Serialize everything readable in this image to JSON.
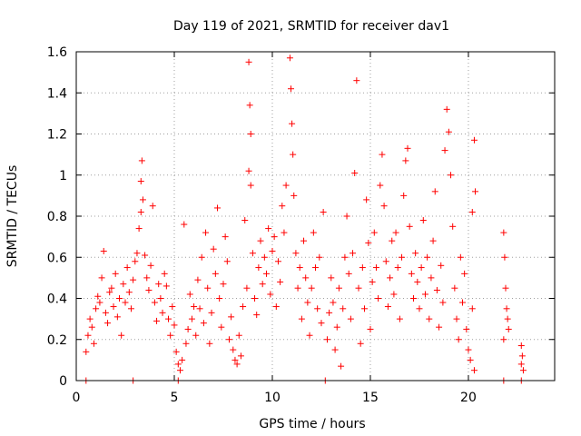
{
  "chart_data": {
    "type": "scatter",
    "title": "Day 119 of 2021, SRMTID for receiver dav1",
    "xlabel": "GPS time / hours",
    "ylabel": "SRMTID / TECUs",
    "xlim": [
      0,
      24.4
    ],
    "ylim": [
      0,
      1.6
    ],
    "xticks": [
      0,
      5,
      10,
      15,
      20
    ],
    "yticks": [
      0,
      0.2,
      0.4,
      0.6,
      0.8,
      1,
      1.2,
      1.4,
      1.6
    ],
    "xtick_labels": [
      "0",
      "5",
      "10",
      "15",
      "20"
    ],
    "ytick_labels": [
      "0",
      "0.2",
      "0.4",
      "0.6",
      "0.8",
      "1",
      "1.2",
      "1.4",
      "1.6"
    ],
    "grid": true,
    "marker": "+",
    "color": "#ff0000",
    "series": [
      {
        "name": "SRMTID",
        "points": [
          [
            0.5,
            0
          ],
          [
            2.9,
            0
          ],
          [
            5.2,
            0
          ],
          [
            12.7,
            0
          ],
          [
            21.8,
            0
          ],
          [
            22.7,
            0
          ],
          [
            0.5,
            0.14
          ],
          [
            0.6,
            0.22
          ],
          [
            0.7,
            0.3
          ],
          [
            0.8,
            0.26
          ],
          [
            0.9,
            0.18
          ],
          [
            1.0,
            0.35
          ],
          [
            1.1,
            0.41
          ],
          [
            1.2,
            0.38
          ],
          [
            1.3,
            0.5
          ],
          [
            1.4,
            0.63
          ],
          [
            1.5,
            0.33
          ],
          [
            1.6,
            0.28
          ],
          [
            1.7,
            0.43
          ],
          [
            1.8,
            0.45
          ],
          [
            1.9,
            0.36
          ],
          [
            2.0,
            0.52
          ],
          [
            2.1,
            0.31
          ],
          [
            2.2,
            0.4
          ],
          [
            2.3,
            0.22
          ],
          [
            2.4,
            0.47
          ],
          [
            2.5,
            0.38
          ],
          [
            2.6,
            0.55
          ],
          [
            2.7,
            0.43
          ],
          [
            2.8,
            0.35
          ],
          [
            2.9,
            0.49
          ],
          [
            3.0,
            0.58
          ],
          [
            3.1,
            0.62
          ],
          [
            3.2,
            0.74
          ],
          [
            3.3,
            0.82
          ],
          [
            3.35,
            1.07
          ],
          [
            3.3,
            0.97
          ],
          [
            3.4,
            0.88
          ],
          [
            3.5,
            0.61
          ],
          [
            3.6,
            0.5
          ],
          [
            3.7,
            0.44
          ],
          [
            3.8,
            0.56
          ],
          [
            3.9,
            0.85
          ],
          [
            4.0,
            0.38
          ],
          [
            4.1,
            0.29
          ],
          [
            4.2,
            0.47
          ],
          [
            4.3,
            0.4
          ],
          [
            4.4,
            0.33
          ],
          [
            4.5,
            0.52
          ],
          [
            4.6,
            0.46
          ],
          [
            4.7,
            0.3
          ],
          [
            4.8,
            0.22
          ],
          [
            4.9,
            0.36
          ],
          [
            5.0,
            0.27
          ],
          [
            5.1,
            0.14
          ],
          [
            5.2,
            0.08
          ],
          [
            5.3,
            0.05
          ],
          [
            5.4,
            0.1
          ],
          [
            5.5,
            0.76
          ],
          [
            5.6,
            0.18
          ],
          [
            5.7,
            0.25
          ],
          [
            5.8,
            0.42
          ],
          [
            5.9,
            0.3
          ],
          [
            6.0,
            0.36
          ],
          [
            6.1,
            0.22
          ],
          [
            6.2,
            0.49
          ],
          [
            6.3,
            0.35
          ],
          [
            6.4,
            0.6
          ],
          [
            6.5,
            0.28
          ],
          [
            6.6,
            0.72
          ],
          [
            6.7,
            0.45
          ],
          [
            6.8,
            0.18
          ],
          [
            6.9,
            0.33
          ],
          [
            7.0,
            0.64
          ],
          [
            7.1,
            0.52
          ],
          [
            7.2,
            0.84
          ],
          [
            7.3,
            0.4
          ],
          [
            7.4,
            0.26
          ],
          [
            7.5,
            0.47
          ],
          [
            7.6,
            0.7
          ],
          [
            7.7,
            0.58
          ],
          [
            7.8,
            0.2
          ],
          [
            7.9,
            0.31
          ],
          [
            8.0,
            0.15
          ],
          [
            8.1,
            0.1
          ],
          [
            8.2,
            0.08
          ],
          [
            8.3,
            0.22
          ],
          [
            8.4,
            0.12
          ],
          [
            8.5,
            0.36
          ],
          [
            8.6,
            0.78
          ],
          [
            8.7,
            0.45
          ],
          [
            8.8,
            1.55
          ],
          [
            8.85,
            1.34
          ],
          [
            8.9,
            1.2
          ],
          [
            8.8,
            1.02
          ],
          [
            8.9,
            0.95
          ],
          [
            9.0,
            0.62
          ],
          [
            9.1,
            0.4
          ],
          [
            9.2,
            0.32
          ],
          [
            9.3,
            0.55
          ],
          [
            9.4,
            0.68
          ],
          [
            9.5,
            0.47
          ],
          [
            9.6,
            0.6
          ],
          [
            9.7,
            0.52
          ],
          [
            9.8,
            0.74
          ],
          [
            9.9,
            0.42
          ],
          [
            10.0,
            0.63
          ],
          [
            10.1,
            0.7
          ],
          [
            10.2,
            0.36
          ],
          [
            10.3,
            0.58
          ],
          [
            10.4,
            0.48
          ],
          [
            10.5,
            0.85
          ],
          [
            10.6,
            0.72
          ],
          [
            10.7,
            0.95
          ],
          [
            10.9,
            1.57
          ],
          [
            10.95,
            1.42
          ],
          [
            11.0,
            1.25
          ],
          [
            11.05,
            1.1
          ],
          [
            11.1,
            0.9
          ],
          [
            11.2,
            0.62
          ],
          [
            11.3,
            0.45
          ],
          [
            11.4,
            0.55
          ],
          [
            11.5,
            0.3
          ],
          [
            11.6,
            0.68
          ],
          [
            11.7,
            0.5
          ],
          [
            11.8,
            0.38
          ],
          [
            11.9,
            0.22
          ],
          [
            12.0,
            0.45
          ],
          [
            12.1,
            0.72
          ],
          [
            12.2,
            0.55
          ],
          [
            12.3,
            0.35
          ],
          [
            12.4,
            0.6
          ],
          [
            12.5,
            0.28
          ],
          [
            12.6,
            0.82
          ],
          [
            12.8,
            0.2
          ],
          [
            12.9,
            0.33
          ],
          [
            13.0,
            0.5
          ],
          [
            13.1,
            0.38
          ],
          [
            13.2,
            0.15
          ],
          [
            13.3,
            0.26
          ],
          [
            13.4,
            0.45
          ],
          [
            13.5,
            0.07
          ],
          [
            13.6,
            0.35
          ],
          [
            13.7,
            0.6
          ],
          [
            13.8,
            0.8
          ],
          [
            13.9,
            0.52
          ],
          [
            14.0,
            0.3
          ],
          [
            14.1,
            0.62
          ],
          [
            14.2,
            1.01
          ],
          [
            14.3,
            1.46
          ],
          [
            14.4,
            0.45
          ],
          [
            14.5,
            0.18
          ],
          [
            14.6,
            0.55
          ],
          [
            14.7,
            0.35
          ],
          [
            14.8,
            0.88
          ],
          [
            14.9,
            0.67
          ],
          [
            15.0,
            0.25
          ],
          [
            15.1,
            0.48
          ],
          [
            15.2,
            0.72
          ],
          [
            15.3,
            0.55
          ],
          [
            15.4,
            0.4
          ],
          [
            15.5,
            0.95
          ],
          [
            15.6,
            1.1
          ],
          [
            15.7,
            0.85
          ],
          [
            15.8,
            0.58
          ],
          [
            15.9,
            0.36
          ],
          [
            16.0,
            0.5
          ],
          [
            16.1,
            0.68
          ],
          [
            16.2,
            0.42
          ],
          [
            16.3,
            0.72
          ],
          [
            16.4,
            0.55
          ],
          [
            16.5,
            0.3
          ],
          [
            16.6,
            0.6
          ],
          [
            16.7,
            0.9
          ],
          [
            16.8,
            1.07
          ],
          [
            16.9,
            1.13
          ],
          [
            17.0,
            0.75
          ],
          [
            17.1,
            0.52
          ],
          [
            17.2,
            0.4
          ],
          [
            17.3,
            0.62
          ],
          [
            17.4,
            0.48
          ],
          [
            17.5,
            0.35
          ],
          [
            17.6,
            0.55
          ],
          [
            17.7,
            0.78
          ],
          [
            17.8,
            0.42
          ],
          [
            17.9,
            0.6
          ],
          [
            18.0,
            0.3
          ],
          [
            18.1,
            0.5
          ],
          [
            18.2,
            0.68
          ],
          [
            18.3,
            0.92
          ],
          [
            18.4,
            0.44
          ],
          [
            18.5,
            0.26
          ],
          [
            18.6,
            0.56
          ],
          [
            18.7,
            0.38
          ],
          [
            18.8,
            1.12
          ],
          [
            18.9,
            1.32
          ],
          [
            19.0,
            1.21
          ],
          [
            19.1,
            1.0
          ],
          [
            19.2,
            0.75
          ],
          [
            19.3,
            0.45
          ],
          [
            19.4,
            0.3
          ],
          [
            19.5,
            0.2
          ],
          [
            19.6,
            0.6
          ],
          [
            19.7,
            0.38
          ],
          [
            19.8,
            0.52
          ],
          [
            19.9,
            0.25
          ],
          [
            20.0,
            0.15
          ],
          [
            20.1,
            0.1
          ],
          [
            20.2,
            0.82
          ],
          [
            20.3,
            1.17
          ],
          [
            20.35,
            0.92
          ],
          [
            20.2,
            0.35
          ],
          [
            20.3,
            0.05
          ],
          [
            21.8,
            0.72
          ],
          [
            21.85,
            0.6
          ],
          [
            21.9,
            0.45
          ],
          [
            21.95,
            0.35
          ],
          [
            22.0,
            0.3
          ],
          [
            22.05,
            0.25
          ],
          [
            21.8,
            0.2
          ],
          [
            22.7,
            0.17
          ],
          [
            22.75,
            0.12
          ],
          [
            22.7,
            0.08
          ],
          [
            22.8,
            0.05
          ]
        ]
      }
    ]
  }
}
